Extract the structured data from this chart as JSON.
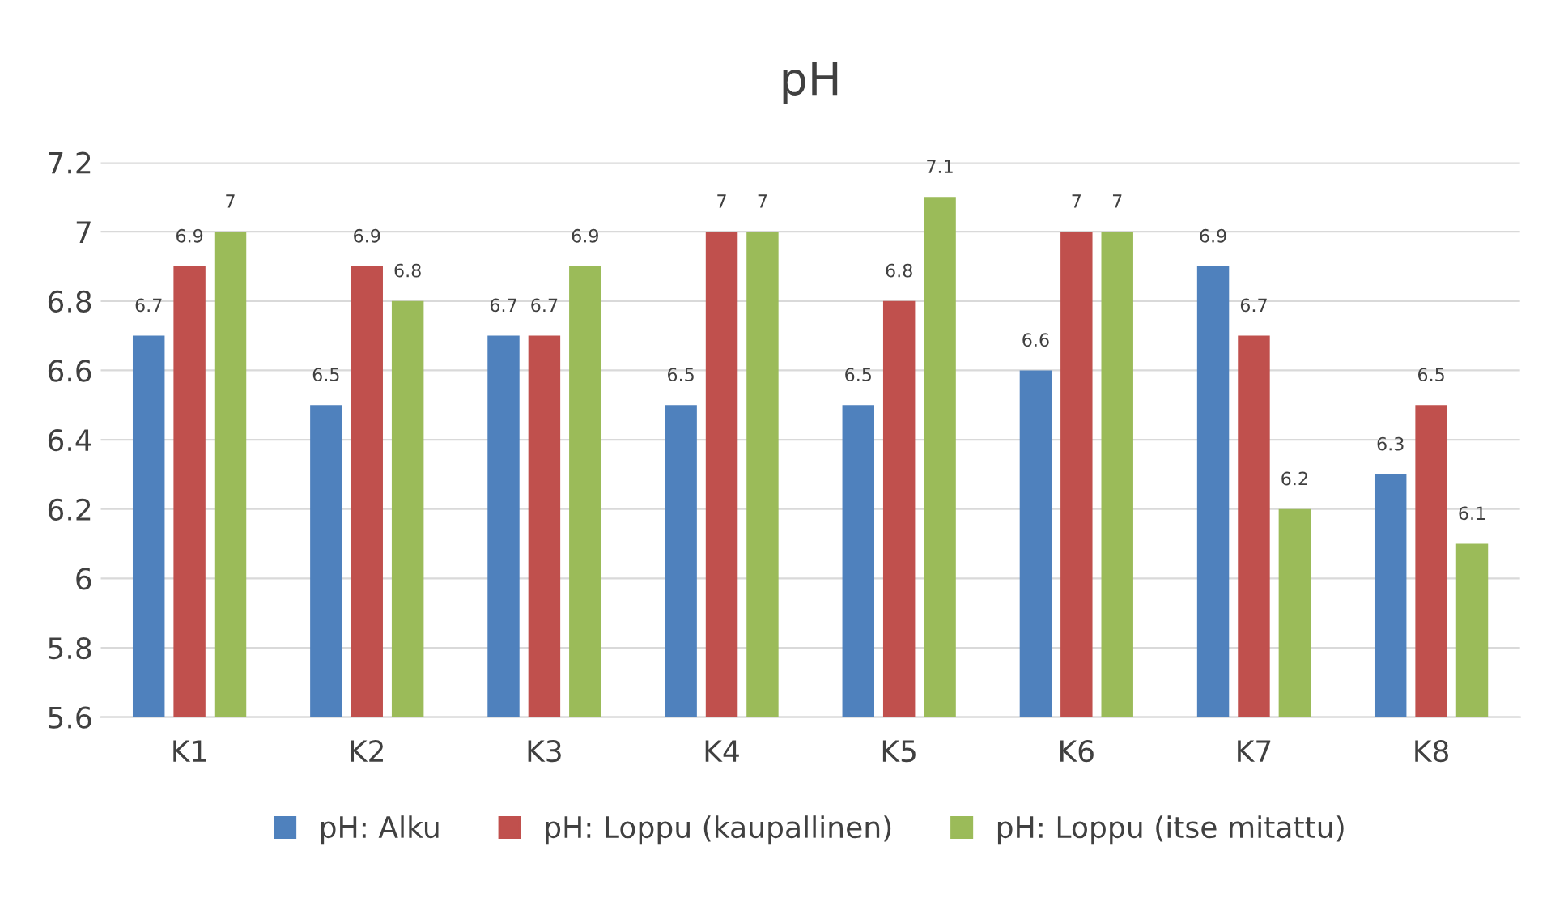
{
  "chart_data": {
    "type": "bar",
    "title": "pH",
    "categories": [
      "K1",
      "K2",
      "K3",
      "K4",
      "K5",
      "K6",
      "K7",
      "K8"
    ],
    "series": [
      {
        "name": "pH: Alku",
        "color": "#4f81bd",
        "values": [
          6.7,
          6.5,
          6.7,
          6.5,
          6.5,
          6.6,
          6.9,
          6.3
        ]
      },
      {
        "name": "pH: Loppu (kaupallinen)",
        "color": "#c0504d",
        "values": [
          6.9,
          6.9,
          6.7,
          7,
          6.8,
          7,
          6.7,
          6.5
        ]
      },
      {
        "name": "pH: Loppu (itse mitattu)",
        "color": "#9bbb59",
        "values": [
          7,
          6.8,
          6.9,
          7,
          7.1,
          7,
          6.2,
          6.1
        ]
      }
    ],
    "ylim": [
      5.6,
      7.2
    ],
    "yticks": [
      5.6,
      5.8,
      6,
      6.2,
      6.4,
      6.6,
      6.8,
      7,
      7.2
    ],
    "grid": "y",
    "legend": "bottom",
    "data_labels": true
  }
}
